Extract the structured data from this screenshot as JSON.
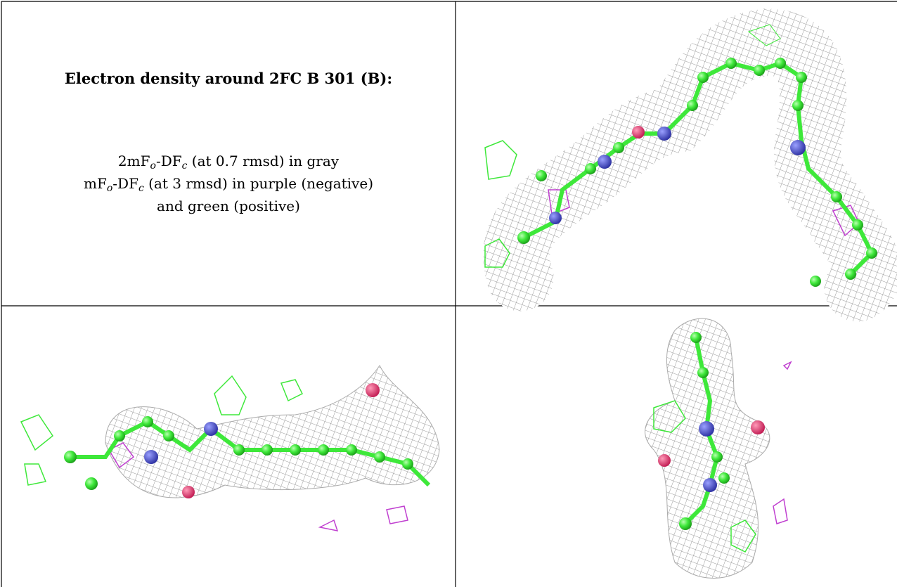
{
  "figure": {
    "title": "Electron density around 2FC B 301 (B):",
    "legend": [
      [
        "2mF",
        "o",
        "-DF",
        "c",
        " (at 0.7 rmsd) in gray"
      ],
      [
        "mF",
        "o",
        "-DF",
        "c",
        " (at 3 rmsd) in purple (negative)"
      ],
      [
        "and green (positive)"
      ]
    ]
  }
}
